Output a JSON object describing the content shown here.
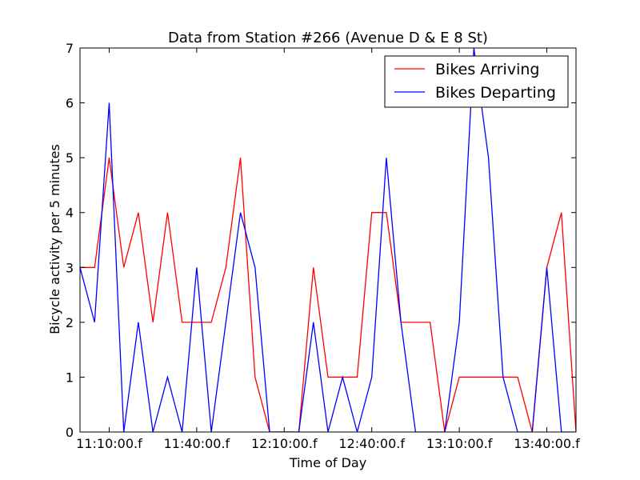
{
  "chart_data": {
    "type": "line",
    "title": "Data from Station #266 (Avenue D & E 8 St)",
    "xlabel": "Time of Day",
    "ylabel": "Bicycle activity per 5 minutes",
    "ylim": [
      0,
      7
    ],
    "yticks": [
      "0",
      "1",
      "2",
      "3",
      "4",
      "5",
      "6",
      "7"
    ],
    "xticks": [
      "11:10:00.f",
      "11:40:00.f",
      "12:10:00.f",
      "12:40:00.f",
      "13:10:00.f",
      "13:40:00.f"
    ],
    "xlim": [
      "11:00",
      "13:50"
    ],
    "x": [
      "11:00",
      "11:05",
      "11:10",
      "11:15",
      "11:20",
      "11:25",
      "11:30",
      "11:35",
      "11:40",
      "11:45",
      "11:50",
      "11:55",
      "12:00",
      "12:05",
      "12:10",
      "12:15",
      "12:20",
      "12:25",
      "12:30",
      "12:35",
      "12:40",
      "12:45",
      "12:50",
      "12:55",
      "13:00",
      "13:05",
      "13:10",
      "13:15",
      "13:20",
      "13:25",
      "13:30",
      "13:35",
      "13:40",
      "13:45",
      "13:50"
    ],
    "series": [
      {
        "name": "Bikes Arriving",
        "color": "#ff0000",
        "values": [
          3,
          3,
          5,
          3,
          4,
          2,
          4,
          2,
          2,
          2,
          3,
          5,
          1,
          0,
          0,
          0,
          3,
          1,
          1,
          1,
          4,
          4,
          2,
          2,
          2,
          0,
          1,
          1,
          1,
          1,
          1,
          0,
          3,
          4,
          0
        ]
      },
      {
        "name": "Bikes Departing",
        "color": "#0000ff",
        "values": [
          3,
          2,
          6,
          0,
          2,
          0,
          1,
          0,
          3,
          0,
          2,
          4,
          3,
          0,
          0,
          0,
          2,
          0,
          1,
          0,
          1,
          5,
          2,
          0,
          0,
          0,
          2,
          7,
          5,
          1,
          0,
          0,
          3,
          0,
          0
        ]
      }
    ],
    "legend": {
      "location": "top-right",
      "entries": [
        "Bikes Arriving",
        "Bikes Departing"
      ]
    },
    "grid": false
  }
}
